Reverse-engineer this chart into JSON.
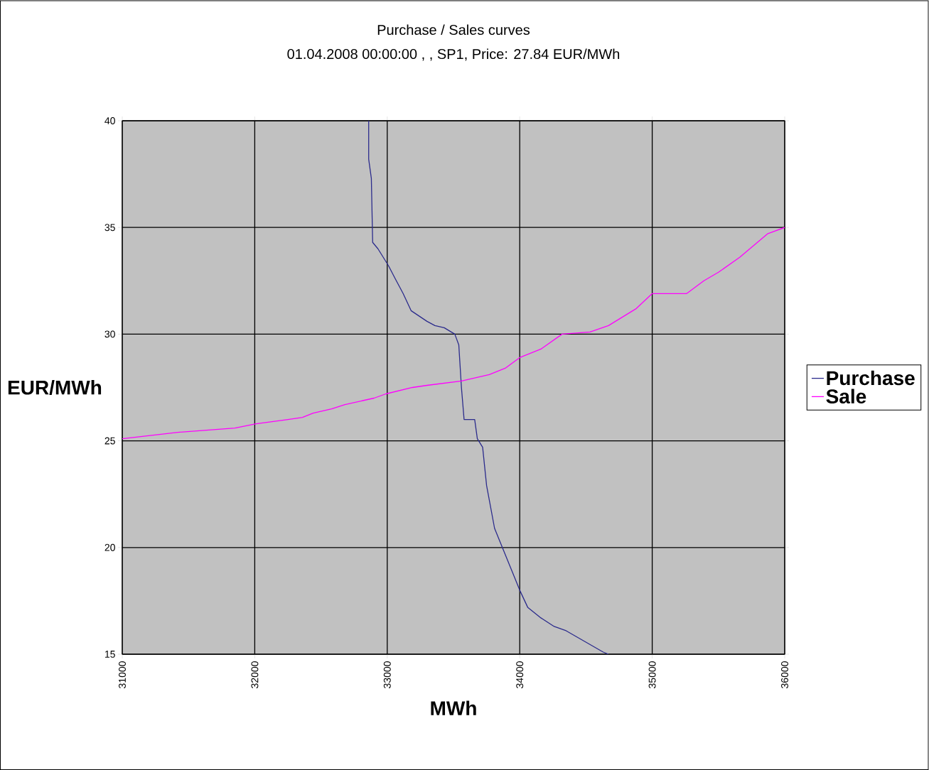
{
  "chart_data": {
    "type": "line",
    "title": "Purchase / Sales curves",
    "subtitle": "01.04.2008 00:00:00 , , SP1, Price: 27.84 EUR/MWh",
    "xlabel": "MWh",
    "ylabel": "EUR/MWh",
    "xlim": [
      31000,
      36000
    ],
    "ylim": [
      15,
      40
    ],
    "xticks": [
      31000,
      32000,
      33000,
      34000,
      35000,
      36000
    ],
    "yticks": [
      15,
      20,
      25,
      30,
      35,
      40
    ],
    "grid": true,
    "legend": "right",
    "marker": "none",
    "line_style": "solid",
    "series": [
      {
        "name": "Purchase",
        "color": "#2b2b8c",
        "x": [
          32860,
          32860,
          32880,
          32890,
          32930,
          33010,
          33060,
          33120,
          33180,
          33300,
          33360,
          33430,
          33510,
          33540,
          33560,
          33580,
          33660,
          33680,
          33720,
          33750,
          33810,
          34000,
          34060,
          34160,
          34260,
          34350,
          34630,
          34670
        ],
        "values": [
          40,
          38.2,
          37.3,
          34.3,
          34.0,
          33.2,
          32.6,
          31.9,
          31.1,
          30.6,
          30.4,
          30.3,
          30.0,
          29.5,
          27.5,
          26.0,
          26.0,
          25.1,
          24.7,
          22.9,
          20.9,
          18.0,
          17.2,
          16.7,
          16.3,
          16.1,
          15.1,
          15.0
        ]
      },
      {
        "name": "Sale",
        "color": "#ff00ff",
        "x": [
          31000,
          31420,
          31850,
          32010,
          32250,
          32360,
          32440,
          32580,
          32680,
          32900,
          32990,
          33190,
          33300,
          33560,
          33770,
          33890,
          34000,
          34160,
          34320,
          34530,
          34670,
          34880,
          35000,
          35260,
          35390,
          35500,
          35660,
          35870,
          36000
        ],
        "values": [
          25.1,
          25.4,
          25.6,
          25.8,
          26.0,
          26.1,
          26.3,
          26.5,
          26.7,
          27.0,
          27.2,
          27.5,
          27.6,
          27.8,
          28.1,
          28.4,
          28.9,
          29.3,
          30.0,
          30.1,
          30.4,
          31.2,
          31.9,
          31.9,
          32.5,
          32.9,
          33.6,
          34.7,
          35.0
        ]
      }
    ]
  }
}
